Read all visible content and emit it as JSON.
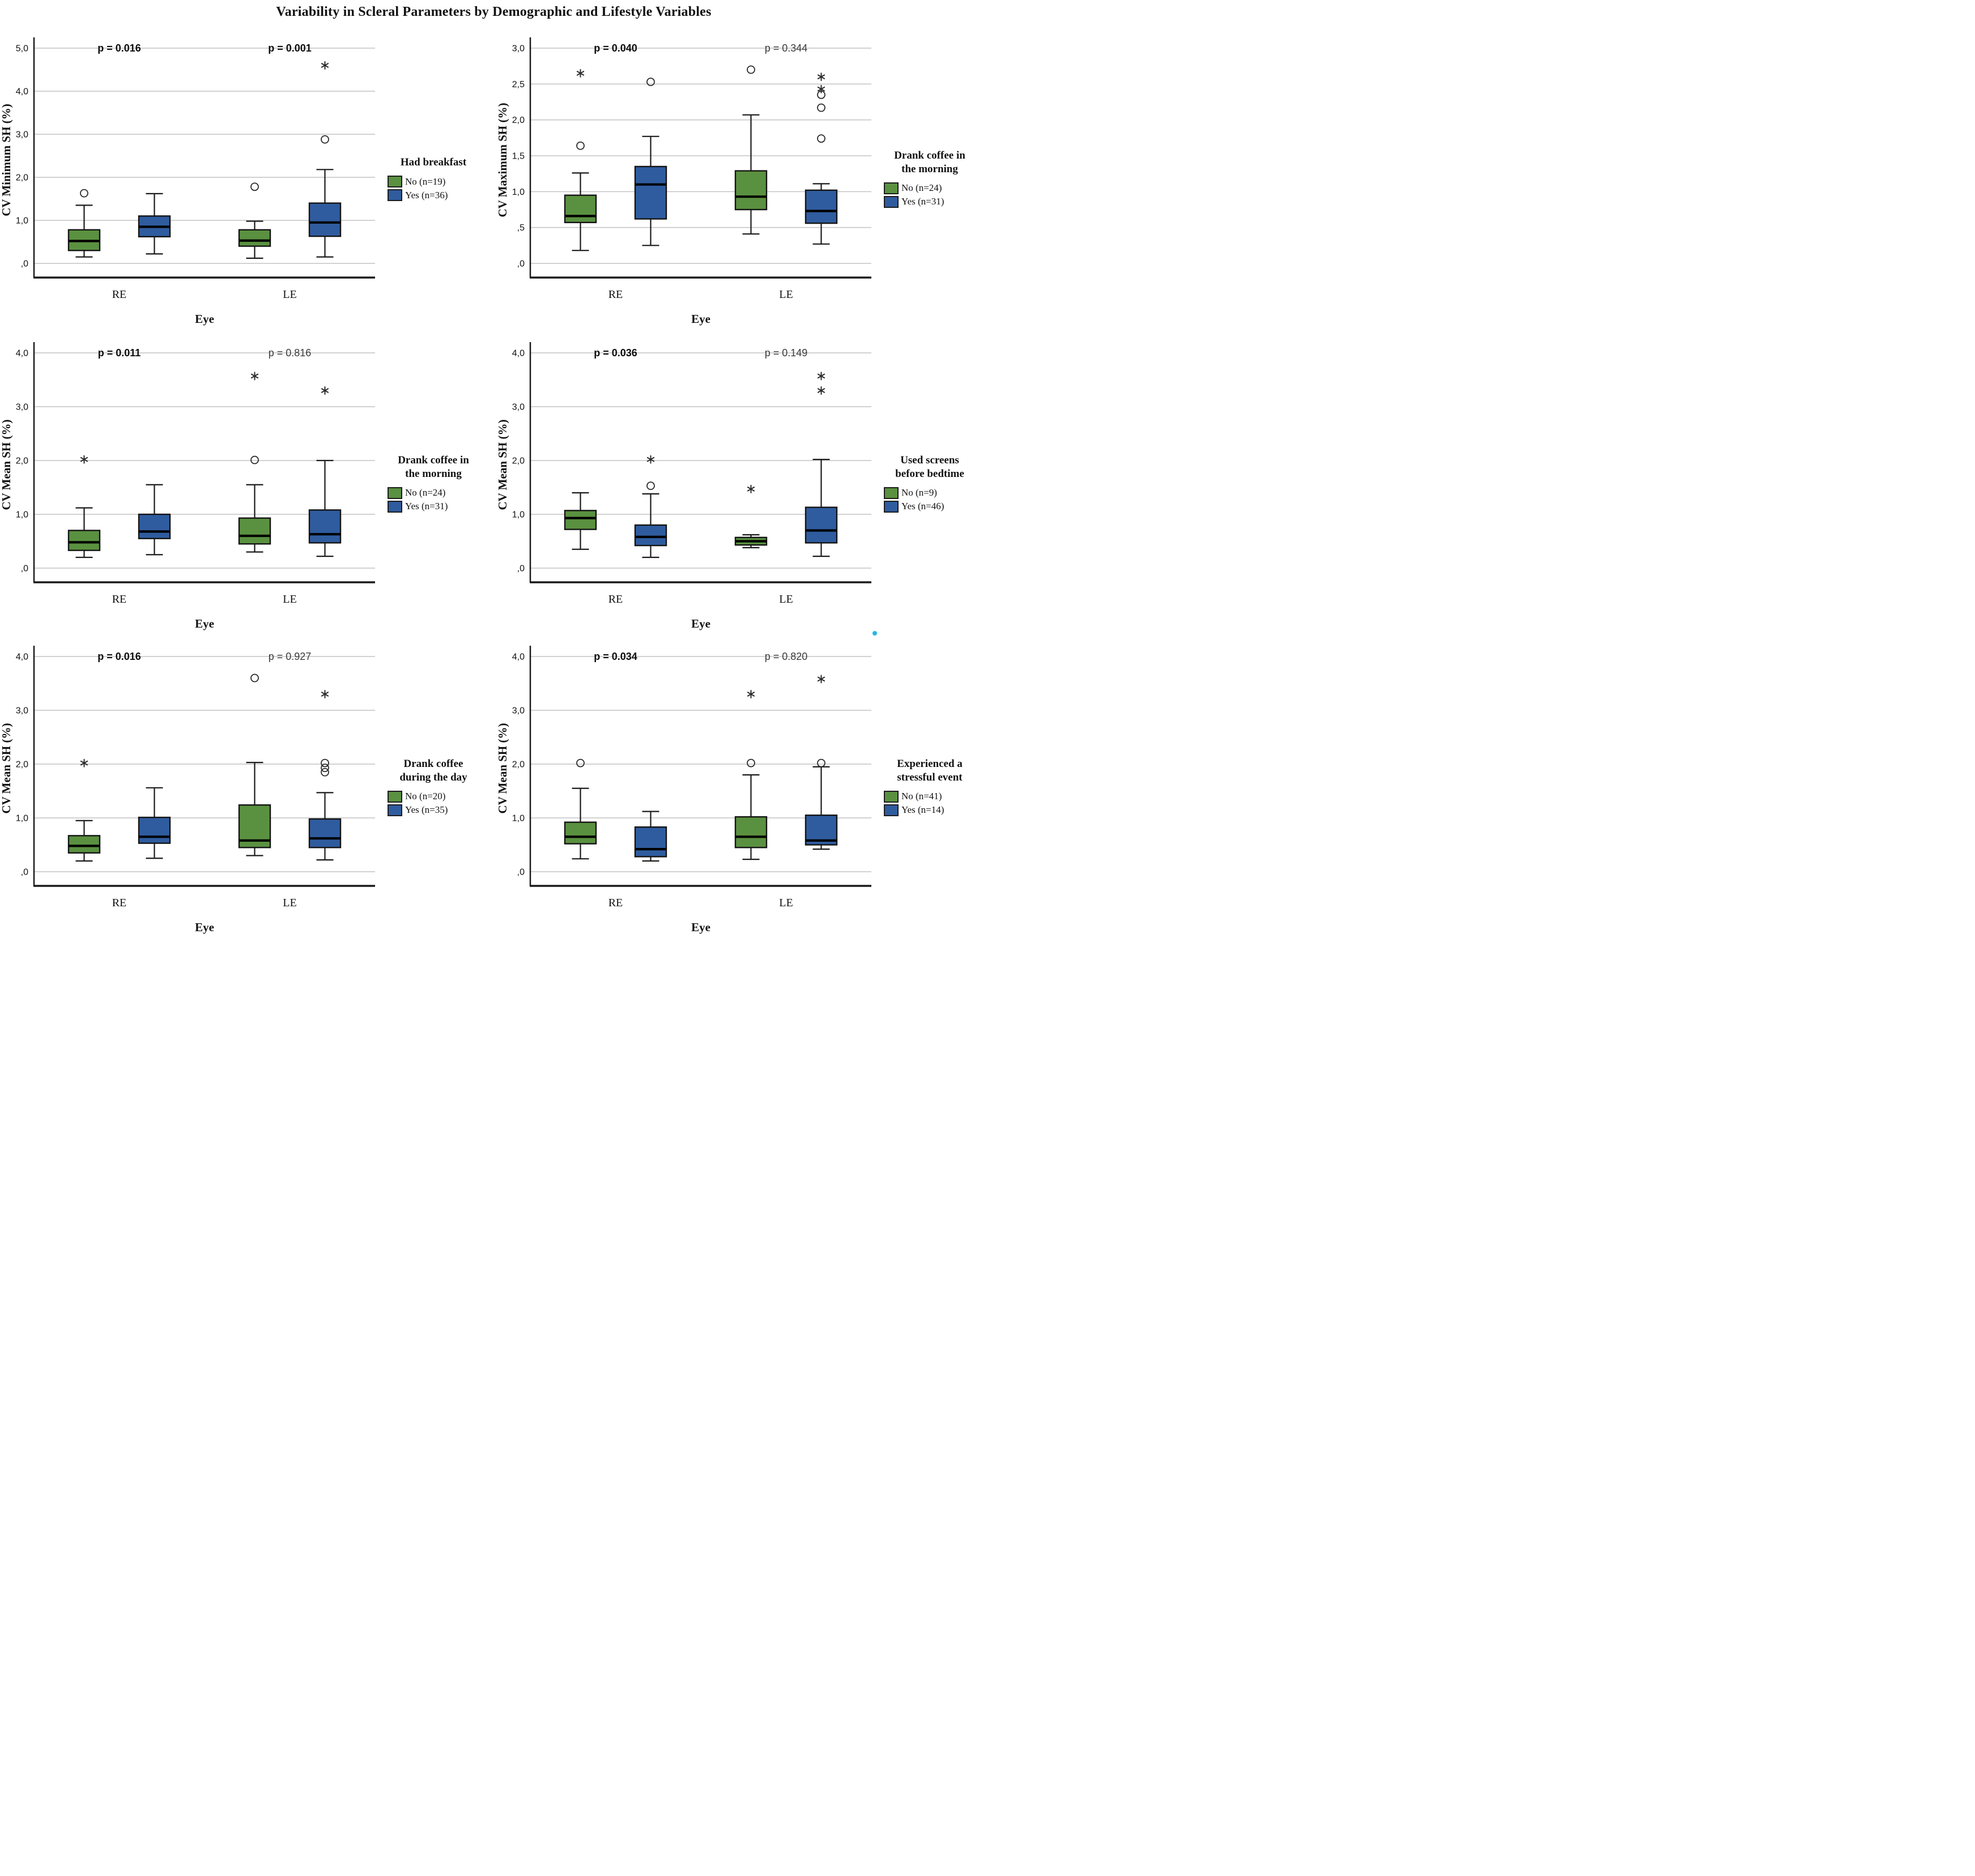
{
  "title": "Variability in Scleral Parameters by Demographic and Lifestyle Variables",
  "colors": {
    "no": "#5a9140",
    "yes": "#2f5c9f",
    "grid": "#c3c3c3",
    "axis": "#1a1a1a",
    "stray_dot": "#25b6e3"
  },
  "x_axis": {
    "label": "Eye",
    "categories": [
      "RE",
      "LE"
    ]
  },
  "chart_data": [
    {
      "type": "boxplot",
      "ylabel": "CV Minimum SH (%)",
      "xlabel": "Eye",
      "categories": [
        "RE",
        "LE"
      ],
      "ylim": [
        0,
        5
      ],
      "yticks": [
        {
          "v": 0,
          "label": ",0"
        },
        {
          "v": 1,
          "label": "1,0"
        },
        {
          "v": 2,
          "label": "2,0"
        },
        {
          "v": 3,
          "label": "3,0"
        },
        {
          "v": 4,
          "label": "4,0"
        },
        {
          "v": 5,
          "label": "5,0"
        }
      ],
      "p_values": [
        {
          "group": "RE",
          "text": "p = 0.016",
          "bold": true
        },
        {
          "group": "LE",
          "text": "p = 0.001",
          "bold": true
        }
      ],
      "legend": {
        "title": "Had breakfast",
        "items": [
          {
            "label": "No (n=19)",
            "color_key": "no"
          },
          {
            "label": "Yes (n=36)",
            "color_key": "yes"
          }
        ]
      },
      "series": [
        {
          "group": "RE",
          "level": "No",
          "low": 0.15,
          "q1": 0.3,
          "median": 0.52,
          "q3": 0.78,
          "high": 1.35,
          "outliers": {
            "circles": [
              1.63
            ],
            "stars": []
          }
        },
        {
          "group": "RE",
          "level": "Yes",
          "low": 0.22,
          "q1": 0.62,
          "median": 0.85,
          "q3": 1.1,
          "high": 1.62,
          "outliers": {
            "circles": [],
            "stars": []
          }
        },
        {
          "group": "LE",
          "level": "No",
          "low": 0.12,
          "q1": 0.4,
          "median": 0.53,
          "q3": 0.78,
          "high": 0.98,
          "outliers": {
            "circles": [
              1.78
            ],
            "stars": []
          }
        },
        {
          "group": "LE",
          "level": "Yes",
          "low": 0.15,
          "q1": 0.63,
          "median": 0.95,
          "q3": 1.4,
          "high": 2.18,
          "outliers": {
            "circles": [
              2.88
            ],
            "stars": [
              4.6
            ]
          }
        }
      ]
    },
    {
      "type": "boxplot",
      "ylabel": "CV Maximum SH (%)",
      "xlabel": "Eye",
      "categories": [
        "RE",
        "LE"
      ],
      "ylim": [
        0,
        3
      ],
      "yticks": [
        {
          "v": 0,
          "label": ",0"
        },
        {
          "v": 0.5,
          "label": ",5"
        },
        {
          "v": 1,
          "label": "1,0"
        },
        {
          "v": 1.5,
          "label": "1,5"
        },
        {
          "v": 2,
          "label": "2,0"
        },
        {
          "v": 2.5,
          "label": "2,5"
        },
        {
          "v": 3,
          "label": "3,0"
        }
      ],
      "p_values": [
        {
          "group": "RE",
          "text": "p = 0.040",
          "bold": true
        },
        {
          "group": "LE",
          "text": "p = 0.344",
          "bold": false
        }
      ],
      "legend": {
        "title": "Drank coffee in the morning",
        "items": [
          {
            "label": "No (n=24)",
            "color_key": "no"
          },
          {
            "label": "Yes (n=31)",
            "color_key": "yes"
          }
        ]
      },
      "series": [
        {
          "group": "RE",
          "level": "No",
          "low": 0.18,
          "q1": 0.57,
          "median": 0.66,
          "q3": 0.95,
          "high": 1.26,
          "outliers": {
            "circles": [
              1.64
            ],
            "stars": [
              2.65
            ]
          }
        },
        {
          "group": "RE",
          "level": "Yes",
          "low": 0.25,
          "q1": 0.62,
          "median": 1.1,
          "q3": 1.35,
          "high": 1.77,
          "outliers": {
            "circles": [
              2.53
            ],
            "stars": []
          }
        },
        {
          "group": "LE",
          "level": "No",
          "low": 0.41,
          "q1": 0.75,
          "median": 0.93,
          "q3": 1.29,
          "high": 2.07,
          "outliers": {
            "circles": [
              2.7
            ],
            "stars": []
          }
        },
        {
          "group": "LE",
          "level": "Yes",
          "low": 0.27,
          "q1": 0.56,
          "median": 0.73,
          "q3": 1.02,
          "high": 1.11,
          "outliers": {
            "circles": [
              1.74,
              2.17,
              2.35
            ],
            "stars": [
              2.43,
              2.6
            ]
          }
        }
      ]
    },
    {
      "type": "boxplot",
      "ylabel": "CV Mean SH (%)",
      "xlabel": "Eye",
      "categories": [
        "RE",
        "LE"
      ],
      "ylim": [
        0,
        4
      ],
      "yticks": [
        {
          "v": 0,
          "label": ",0"
        },
        {
          "v": 1,
          "label": "1,0"
        },
        {
          "v": 2,
          "label": "2,0"
        },
        {
          "v": 3,
          "label": "3,0"
        },
        {
          "v": 4,
          "label": "4,0"
        }
      ],
      "p_values": [
        {
          "group": "RE",
          "text": "p = 0.011",
          "bold": true
        },
        {
          "group": "LE",
          "text": "p = 0.816",
          "bold": false
        }
      ],
      "legend": {
        "title": "Drank coffee in the morning",
        "items": [
          {
            "label": "No (n=24)",
            "color_key": "no"
          },
          {
            "label": "Yes (n=31)",
            "color_key": "yes"
          }
        ]
      },
      "series": [
        {
          "group": "RE",
          "level": "No",
          "low": 0.2,
          "q1": 0.33,
          "median": 0.48,
          "q3": 0.7,
          "high": 1.12,
          "outliers": {
            "circles": [],
            "stars": [
              2.02
            ]
          }
        },
        {
          "group": "RE",
          "level": "Yes",
          "low": 0.25,
          "q1": 0.55,
          "median": 0.68,
          "q3": 1.0,
          "high": 1.55,
          "outliers": {
            "circles": [],
            "stars": []
          }
        },
        {
          "group": "LE",
          "level": "No",
          "low": 0.3,
          "q1": 0.45,
          "median": 0.6,
          "q3": 0.93,
          "high": 1.55,
          "outliers": {
            "circles": [
              2.01
            ],
            "stars": [
              3.57
            ]
          }
        },
        {
          "group": "LE",
          "level": "Yes",
          "low": 0.22,
          "q1": 0.47,
          "median": 0.63,
          "q3": 1.08,
          "high": 2.0,
          "outliers": {
            "circles": [],
            "stars": [
              3.3
            ]
          }
        }
      ]
    },
    {
      "type": "boxplot",
      "ylabel": "CV Mean SH (%)",
      "xlabel": "Eye",
      "categories": [
        "RE",
        "LE"
      ],
      "ylim": [
        0,
        4
      ],
      "yticks": [
        {
          "v": 0,
          "label": ",0"
        },
        {
          "v": 1,
          "label": "1,0"
        },
        {
          "v": 2,
          "label": "2,0"
        },
        {
          "v": 3,
          "label": "3,0"
        },
        {
          "v": 4,
          "label": "4,0"
        }
      ],
      "p_values": [
        {
          "group": "RE",
          "text": "p = 0.036",
          "bold": true
        },
        {
          "group": "LE",
          "text": "p = 0.149",
          "bold": false
        }
      ],
      "legend": {
        "title": "Used screens before bedtime",
        "items": [
          {
            "label": "No (n=9)",
            "color_key": "no"
          },
          {
            "label": "Yes (n=46)",
            "color_key": "yes"
          }
        ]
      },
      "series": [
        {
          "group": "RE",
          "level": "No",
          "low": 0.35,
          "q1": 0.72,
          "median": 0.93,
          "q3": 1.07,
          "high": 1.4,
          "outliers": {
            "circles": [],
            "stars": []
          }
        },
        {
          "group": "RE",
          "level": "Yes",
          "low": 0.2,
          "q1": 0.42,
          "median": 0.58,
          "q3": 0.8,
          "high": 1.38,
          "outliers": {
            "circles": [
              1.53
            ],
            "stars": [
              2.02
            ]
          }
        },
        {
          "group": "LE",
          "level": "No",
          "low": 0.38,
          "q1": 0.43,
          "median": 0.5,
          "q3": 0.57,
          "high": 0.62,
          "outliers": {
            "circles": [],
            "stars": [
              1.47
            ]
          }
        },
        {
          "group": "LE",
          "level": "Yes",
          "low": 0.22,
          "q1": 0.47,
          "median": 0.7,
          "q3": 1.13,
          "high": 2.02,
          "outliers": {
            "circles": [],
            "stars": [
              3.3,
              3.57
            ]
          }
        }
      ]
    },
    {
      "type": "boxplot",
      "ylabel": "CV Mean SH (%)",
      "xlabel": "Eye",
      "categories": [
        "RE",
        "LE"
      ],
      "ylim": [
        0,
        4
      ],
      "yticks": [
        {
          "v": 0,
          "label": ",0"
        },
        {
          "v": 1,
          "label": "1,0"
        },
        {
          "v": 2,
          "label": "2,0"
        },
        {
          "v": 3,
          "label": "3,0"
        },
        {
          "v": 4,
          "label": "4,0"
        }
      ],
      "p_values": [
        {
          "group": "RE",
          "text": "p = 0.016",
          "bold": true
        },
        {
          "group": "LE",
          "text": "p = 0.927",
          "bold": false
        }
      ],
      "legend": {
        "title": "Drank coffee during the day",
        "items": [
          {
            "label": "No (n=20)",
            "color_key": "no"
          },
          {
            "label": "Yes (n=35)",
            "color_key": "yes"
          }
        ]
      },
      "series": [
        {
          "group": "RE",
          "level": "No",
          "low": 0.2,
          "q1": 0.35,
          "median": 0.48,
          "q3": 0.67,
          "high": 0.95,
          "outliers": {
            "circles": [],
            "stars": [
              2.02
            ]
          }
        },
        {
          "group": "RE",
          "level": "Yes",
          "low": 0.25,
          "q1": 0.53,
          "median": 0.65,
          "q3": 1.01,
          "high": 1.56,
          "outliers": {
            "circles": [],
            "stars": []
          }
        },
        {
          "group": "LE",
          "level": "No",
          "low": 0.3,
          "q1": 0.45,
          "median": 0.58,
          "q3": 1.24,
          "high": 2.03,
          "outliers": {
            "circles": [
              3.6
            ],
            "stars": []
          }
        },
        {
          "group": "LE",
          "level": "Yes",
          "low": 0.22,
          "q1": 0.45,
          "median": 0.62,
          "q3": 0.98,
          "high": 1.47,
          "outliers": {
            "circles": [
              1.85,
              1.93,
              2.02
            ],
            "stars": [
              3.3
            ]
          }
        }
      ]
    },
    {
      "type": "boxplot",
      "ylabel": "CV Mean SH (%)",
      "xlabel": "Eye",
      "categories": [
        "RE",
        "LE"
      ],
      "ylim": [
        0,
        4
      ],
      "yticks": [
        {
          "v": 0,
          "label": ",0"
        },
        {
          "v": 1,
          "label": "1,0"
        },
        {
          "v": 2,
          "label": "2,0"
        },
        {
          "v": 3,
          "label": "3,0"
        },
        {
          "v": 4,
          "label": "4,0"
        }
      ],
      "p_values": [
        {
          "group": "RE",
          "text": "p = 0.034",
          "bold": true
        },
        {
          "group": "LE",
          "text": "p = 0.820",
          "bold": false
        }
      ],
      "legend": {
        "title": "Experienced a stressful event",
        "items": [
          {
            "label": "No (n=41)",
            "color_key": "no"
          },
          {
            "label": "Yes (n=14)",
            "color_key": "yes"
          }
        ]
      },
      "series": [
        {
          "group": "RE",
          "level": "No",
          "low": 0.24,
          "q1": 0.52,
          "median": 0.65,
          "q3": 0.92,
          "high": 1.55,
          "outliers": {
            "circles": [
              2.02
            ],
            "stars": []
          }
        },
        {
          "group": "RE",
          "level": "Yes",
          "low": 0.2,
          "q1": 0.28,
          "median": 0.42,
          "q3": 0.83,
          "high": 1.12,
          "outliers": {
            "circles": [],
            "stars": []
          }
        },
        {
          "group": "LE",
          "level": "No",
          "low": 0.23,
          "q1": 0.45,
          "median": 0.65,
          "q3": 1.02,
          "high": 1.8,
          "outliers": {
            "circles": [
              2.02
            ],
            "stars": [
              3.3
            ]
          }
        },
        {
          "group": "LE",
          "level": "Yes",
          "low": 0.42,
          "q1": 0.5,
          "median": 0.58,
          "q3": 1.05,
          "high": 1.95,
          "outliers": {
            "circles": [
              2.02
            ],
            "stars": [
              3.58
            ]
          }
        }
      ]
    }
  ]
}
